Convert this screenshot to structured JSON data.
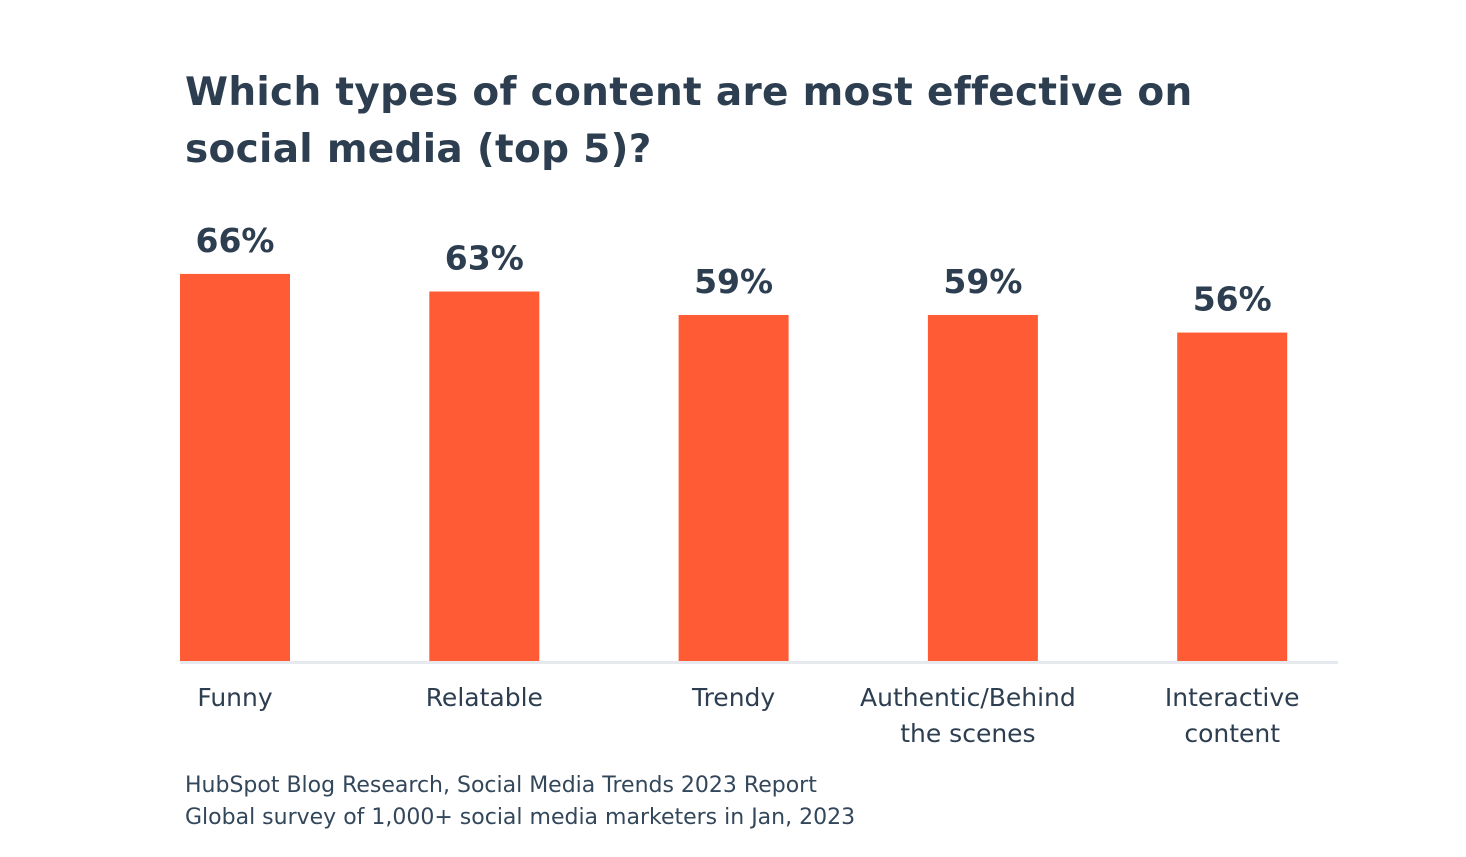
{
  "chart_data": {
    "type": "bar",
    "title": "Which types of content are most effective on social media (top 5)?",
    "categories": [
      "Funny",
      "Relatable",
      "Trendy",
      "Authentic/Behind the scenes",
      "Interactive content"
    ],
    "category_lines": [
      [
        "Funny"
      ],
      [
        "Relatable"
      ],
      [
        "Trendy"
      ],
      [
        "Authentic/Behind",
        "the scenes"
      ],
      [
        "Interactive",
        "content"
      ]
    ],
    "values": [
      66,
      63,
      59,
      59,
      56
    ],
    "data_labels": [
      "66%",
      "63%",
      "59%",
      "59%",
      "56%"
    ],
    "xlabel": "",
    "ylabel": "",
    "ylim": [
      0,
      70
    ],
    "grid": false,
    "y_axis_visible": false,
    "bar_color": "#ff5c35",
    "baseline_color": "#e6e9ed"
  },
  "source": {
    "line1": "HubSpot Blog Research, Social Media Trends 2023 Report",
    "line2": "Global survey of 1,000+ social media marketers in Jan, 2023"
  }
}
